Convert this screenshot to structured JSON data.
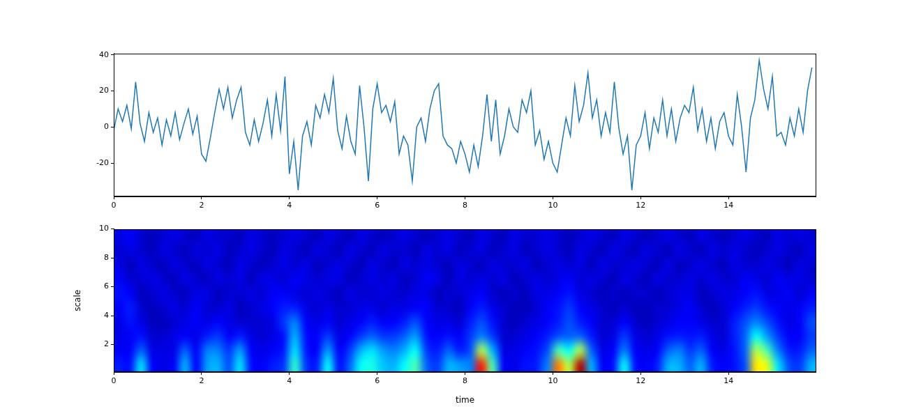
{
  "chart_data": [
    {
      "type": "line",
      "color": "#1f77b4",
      "grid": false,
      "xlim": [
        0,
        16
      ],
      "xticks": [
        0,
        2,
        4,
        6,
        8,
        10,
        12,
        14
      ],
      "ylim": [
        -38.5,
        40.8
      ],
      "yticks": [
        -20,
        0,
        20,
        40
      ],
      "x": [
        0,
        0.1,
        0.2,
        0.3,
        0.4,
        0.5,
        0.6,
        0.7,
        0.8,
        0.9,
        1,
        1.1,
        1.2,
        1.3,
        1.4,
        1.5,
        1.6,
        1.7,
        1.8,
        1.9,
        2,
        2.1,
        2.2,
        2.3,
        2.4,
        2.5,
        2.6,
        2.7,
        2.8,
        2.9,
        3,
        3.1,
        3.2,
        3.3,
        3.4,
        3.5,
        3.6,
        3.7,
        3.8,
        3.9,
        4,
        4.1,
        4.2,
        4.3,
        4.4,
        4.5,
        4.6,
        4.7,
        4.8,
        4.9,
        5,
        5.1,
        5.2,
        5.3,
        5.4,
        5.5,
        5.6,
        5.7,
        5.8,
        5.9,
        6,
        6.1,
        6.2,
        6.3,
        6.4,
        6.5,
        6.6,
        6.7,
        6.8,
        6.9,
        7,
        7.1,
        7.2,
        7.3,
        7.4,
        7.5,
        7.6,
        7.7,
        7.8,
        7.9,
        8,
        8.1,
        8.2,
        8.3,
        8.4,
        8.5,
        8.6,
        8.7,
        8.8,
        8.9,
        9,
        9.1,
        9.2,
        9.3,
        9.4,
        9.5,
        9.6,
        9.7,
        9.8,
        9.9,
        10,
        10.1,
        10.2,
        10.3,
        10.4,
        10.5,
        10.6,
        10.7,
        10.8,
        10.9,
        11,
        11.1,
        11.2,
        11.3,
        11.4,
        11.5,
        11.6,
        11.7,
        11.8,
        11.9,
        12,
        12.1,
        12.2,
        12.3,
        12.4,
        12.5,
        12.6,
        12.7,
        12.8,
        12.9,
        13,
        13.1,
        13.2,
        13.3,
        13.4,
        13.5,
        13.6,
        13.7,
        13.8,
        13.9,
        14,
        14.1,
        14.2,
        14.3,
        14.4,
        14.5,
        14.6,
        14.7,
        14.8,
        14.9,
        15,
        15.1,
        15.2,
        15.3,
        15.4,
        15.5,
        15.6,
        15.7,
        15.8,
        15.9
      ],
      "values": [
        -2,
        10,
        3,
        12,
        -1,
        25,
        2,
        -8,
        8,
        -3,
        5,
        -10,
        4,
        -5,
        8,
        -7,
        2,
        10,
        -4,
        6,
        -15,
        -19,
        -6,
        8,
        21,
        10,
        22,
        5,
        15,
        22,
        -3,
        -10,
        4,
        -8,
        2,
        15,
        -5,
        18,
        -2,
        28,
        -26,
        -8,
        -35,
        -5,
        3,
        -10,
        12,
        5,
        18,
        8,
        27,
        -2,
        -12,
        6,
        -8,
        -15,
        23,
        0,
        -30,
        10,
        24,
        8,
        12,
        3,
        14,
        -15,
        -5,
        -10,
        -30,
        0,
        5,
        -8,
        10,
        20,
        24,
        -5,
        -10,
        -12,
        -20,
        -8,
        -15,
        -25,
        -10,
        -22,
        -5,
        18,
        -8,
        15,
        -15,
        -5,
        10,
        0,
        -3,
        15,
        8,
        20,
        -10,
        -2,
        -18,
        -8,
        -20,
        -25,
        -10,
        5,
        -5,
        23,
        3,
        12,
        30,
        5,
        15,
        -5,
        8,
        -3,
        25,
        0,
        -15,
        -5,
        -35,
        -10,
        -5,
        8,
        -12,
        5,
        -3,
        15,
        -5,
        10,
        -8,
        5,
        12,
        8,
        22,
        -2,
        10,
        -8,
        5,
        -12,
        3,
        8,
        -5,
        -10,
        18,
        0,
        -25,
        5,
        15,
        37,
        21,
        10,
        28,
        -5,
        -3,
        -10,
        5,
        -5,
        10,
        -3,
        20,
        33
      ]
    },
    {
      "type": "heatmap",
      "color": "jet",
      "grid": false,
      "x_label": "time",
      "y_label": "scale",
      "xlim": [
        0,
        16
      ],
      "xticks": [
        0,
        2,
        4,
        6,
        8,
        10,
        12,
        14
      ],
      "ylim": [
        0.1,
        10
      ],
      "yticks": [
        2,
        4,
        6,
        8,
        10
      ],
      "color_range": [
        0,
        100
      ],
      "x": [
        0.125,
        0.375,
        0.625,
        0.875,
        1.125,
        1.375,
        1.625,
        1.875,
        2.125,
        2.375,
        2.625,
        2.875,
        3.125,
        3.375,
        3.625,
        3.875,
        4.125,
        4.375,
        4.625,
        4.875,
        5.125,
        5.375,
        5.625,
        5.875,
        6.125,
        6.375,
        6.625,
        6.875,
        7.125,
        7.375,
        7.625,
        7.875,
        8.125,
        8.375,
        8.625,
        8.875,
        9.125,
        9.375,
        9.625,
        9.875,
        10.125,
        10.375,
        10.625,
        10.875,
        11.125,
        11.375,
        11.625,
        11.875,
        12.125,
        12.375,
        12.625,
        12.875,
        13.125,
        13.375,
        13.625,
        13.875,
        14.125,
        14.375,
        14.625,
        14.875,
        15.125,
        15.375,
        15.625,
        15.875
      ],
      "y": [
        0.595,
        1.585,
        2.575,
        3.565,
        4.555,
        5.545,
        6.535,
        7.525,
        8.515,
        9.505
      ],
      "cells": [
        [
          15,
          14,
          35,
          12,
          10,
          12,
          30,
          12,
          28,
          30,
          20,
          35,
          14,
          12,
          15,
          18,
          42,
          18,
          15,
          38,
          14,
          22,
          38,
          40,
          32,
          30,
          38,
          45,
          22,
          18,
          30,
          28,
          25,
          85,
          45,
          12,
          10,
          14,
          15,
          25,
          75,
          55,
          95,
          30,
          12,
          14,
          38,
          14,
          12,
          15,
          30,
          30,
          22,
          30,
          15,
          12,
          14,
          20,
          65,
          60,
          35,
          20,
          18,
          30
        ],
        [
          12,
          12,
          22,
          10,
          10,
          10,
          22,
          12,
          25,
          25,
          18,
          28,
          12,
          10,
          12,
          15,
          35,
          15,
          12,
          28,
          12,
          18,
          30,
          35,
          28,
          25,
          30,
          38,
          18,
          15,
          22,
          15,
          20,
          55,
          30,
          10,
          10,
          12,
          14,
          20,
          45,
          38,
          55,
          22,
          10,
          12,
          25,
          12,
          10,
          12,
          22,
          25,
          18,
          22,
          12,
          10,
          14,
          22,
          55,
          45,
          25,
          15,
          15,
          22
        ],
        [
          10,
          12,
          14,
          8,
          8,
          10,
          12,
          10,
          15,
          18,
          12,
          15,
          10,
          8,
          10,
          14,
          30,
          14,
          12,
          18,
          10,
          12,
          18,
          22,
          18,
          18,
          22,
          28,
          14,
          12,
          14,
          12,
          18,
          25,
          18,
          8,
          8,
          10,
          12,
          15,
          20,
          22,
          22,
          15,
          8,
          10,
          18,
          10,
          8,
          10,
          14,
          15,
          14,
          15,
          10,
          8,
          15,
          22,
          38,
          28,
          18,
          12,
          12,
          18
        ],
        [
          10,
          14,
          10,
          6,
          6,
          8,
          10,
          12,
          10,
          12,
          10,
          8,
          8,
          8,
          10,
          18,
          25,
          12,
          10,
          12,
          8,
          10,
          12,
          15,
          12,
          12,
          15,
          20,
          12,
          10,
          10,
          8,
          15,
          20,
          14,
          8,
          6,
          8,
          10,
          12,
          15,
          20,
          15,
          12,
          8,
          8,
          12,
          8,
          6,
          8,
          10,
          12,
          12,
          10,
          8,
          8,
          15,
          20,
          25,
          20,
          14,
          10,
          12,
          20
        ],
        [
          12,
          15,
          8,
          6,
          8,
          10,
          8,
          12,
          8,
          8,
          10,
          6,
          8,
          10,
          12,
          15,
          15,
          10,
          8,
          10,
          8,
          8,
          10,
          10,
          8,
          10,
          10,
          12,
          12,
          8,
          8,
          6,
          12,
          15,
          10,
          8,
          6,
          6,
          8,
          12,
          14,
          18,
          12,
          10,
          8,
          6,
          8,
          6,
          6,
          8,
          8,
          10,
          12,
          8,
          6,
          8,
          12,
          15,
          18,
          14,
          12,
          10,
          12,
          15
        ],
        [
          14,
          12,
          6,
          8,
          10,
          8,
          6,
          10,
          10,
          6,
          8,
          8,
          10,
          8,
          12,
          12,
          10,
          8,
          10,
          8,
          6,
          10,
          8,
          8,
          10,
          8,
          8,
          10,
          10,
          6,
          8,
          8,
          10,
          12,
          8,
          6,
          8,
          6,
          10,
          10,
          12,
          14,
          10,
          8,
          6,
          8,
          6,
          8,
          8,
          6,
          8,
          10,
          10,
          6,
          8,
          10,
          10,
          12,
          14,
          10,
          10,
          12,
          8,
          12
        ],
        [
          12,
          8,
          8,
          10,
          8,
          6,
          10,
          8,
          6,
          10,
          8,
          10,
          6,
          10,
          10,
          8,
          12,
          10,
          8,
          10,
          10,
          6,
          8,
          10,
          8,
          10,
          6,
          8,
          12,
          10,
          6,
          10,
          8,
          10,
          8,
          10,
          6,
          8,
          10,
          8,
          10,
          12,
          8,
          10,
          8,
          6,
          10,
          8,
          6,
          10,
          8,
          8,
          10,
          8,
          10,
          8,
          8,
          12,
          10,
          8,
          12,
          10,
          10,
          8
        ],
        [
          10,
          6,
          10,
          8,
          6,
          10,
          8,
          6,
          10,
          8,
          6,
          10,
          8,
          6,
          8,
          10,
          8,
          10,
          6,
          8,
          10,
          8,
          6,
          10,
          8,
          6,
          10,
          8,
          10,
          8,
          6,
          10,
          8,
          6,
          10,
          8,
          8,
          10,
          6,
          8,
          10,
          8,
          10,
          6,
          10,
          8,
          8,
          10,
          8,
          6,
          10,
          6,
          8,
          10,
          8,
          6,
          10,
          8,
          8,
          10,
          8,
          6,
          10,
          8
        ],
        [
          8,
          10,
          8,
          6,
          10,
          8,
          6,
          10,
          8,
          10,
          6,
          8,
          10,
          8,
          6,
          10,
          8,
          6,
          10,
          8,
          6,
          10,
          8,
          6,
          10,
          8,
          8,
          6,
          10,
          8,
          10,
          6,
          8,
          10,
          6,
          8,
          10,
          6,
          8,
          10,
          8,
          6,
          10,
          8,
          6,
          10,
          8,
          6,
          10,
          8,
          6,
          10,
          8,
          6,
          10,
          8,
          10,
          8,
          6,
          8,
          10,
          8,
          6,
          10
        ],
        [
          10,
          12,
          8,
          6,
          8,
          10,
          8,
          6,
          10,
          8,
          8,
          6,
          10,
          8,
          6,
          8,
          10,
          8,
          6,
          10,
          8,
          6,
          10,
          8,
          6,
          8,
          10,
          8,
          6,
          8,
          10,
          8,
          6,
          10,
          8,
          6,
          10,
          8,
          8,
          10,
          8,
          6,
          8,
          10,
          8,
          6,
          10,
          8,
          6,
          8,
          10,
          8,
          6,
          10,
          8,
          6,
          8,
          10,
          8,
          6,
          10,
          8,
          10,
          8
        ]
      ]
    }
  ]
}
